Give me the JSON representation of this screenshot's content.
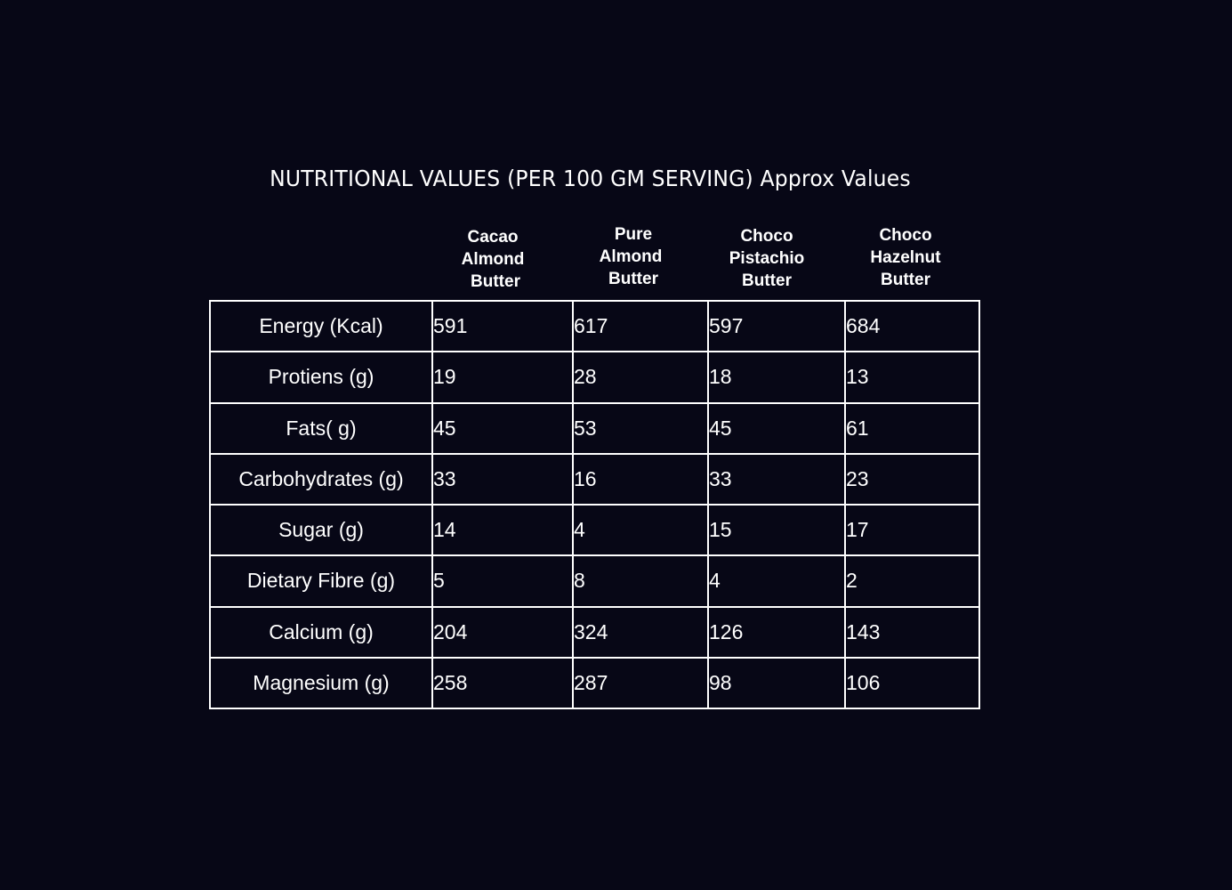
{
  "title": "NUTRITIONAL VALUES (PER 100 GM SERVING) Approx Values",
  "columns": [
    {
      "line1": "Cacao",
      "line2": "Almond",
      "line3": "Butter"
    },
    {
      "line1": "Pure",
      "line2": "Almond",
      "line3": "Butter"
    },
    {
      "line1": "Choco",
      "line2": "Pistachio",
      "line3": "Butter"
    },
    {
      "line1": "Choco",
      "line2": "Hazelnut",
      "line3": "Butter"
    }
  ],
  "rows": [
    {
      "label": "Energy (Kcal)",
      "values": [
        "591",
        "617",
        "597",
        "684"
      ]
    },
    {
      "label": "Protiens (g)",
      "values": [
        "19",
        "28",
        "18",
        "13"
      ]
    },
    {
      "label": "Fats( g)",
      "values": [
        "45",
        "53",
        "45",
        "61"
      ]
    },
    {
      "label": "Carbohydrates (g)",
      "values": [
        "33",
        "16",
        "33",
        "23"
      ]
    },
    {
      "label": "Sugar (g)",
      "values": [
        "14",
        "4",
        "15",
        "17"
      ]
    },
    {
      "label": "Dietary Fibre (g)",
      "values": [
        "5",
        "8",
        "4",
        "2"
      ]
    },
    {
      "label": "Calcium (g)",
      "values": [
        "204",
        "324",
        "126",
        "143"
      ]
    },
    {
      "label": "Magnesium (g)",
      "values": [
        "258",
        "287",
        "98",
        "106"
      ]
    }
  ]
}
